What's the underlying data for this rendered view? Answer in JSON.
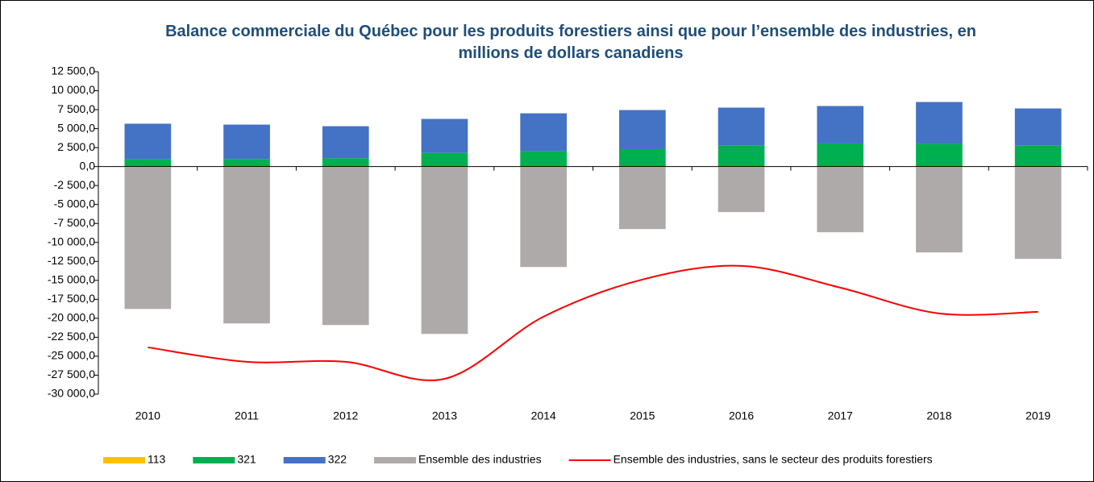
{
  "chart_data": {
    "type": "bar",
    "title": "Balance commerciale du Québec pour les produits forestiers ainsi que pour l’ensemble des industries, en millions de dollars canadiens",
    "categories": [
      "2010",
      "2011",
      "2012",
      "2013",
      "2014",
      "2015",
      "2016",
      "2017",
      "2018",
      "2019"
    ],
    "stacked": true,
    "series": [
      {
        "name": "113",
        "color": "#ffc000",
        "type": "bar",
        "values": [
          -150,
          -150,
          -150,
          -150,
          -150,
          -150,
          -150,
          -150,
          -150,
          -150
        ]
      },
      {
        "name": "321",
        "color": "#00b050",
        "type": "bar",
        "values": [
          950,
          1000,
          1100,
          1800,
          2000,
          2300,
          2750,
          3050,
          3000,
          2750
        ]
      },
      {
        "name": "322",
        "color": "#4472c4",
        "type": "bar",
        "values": [
          4700,
          4530,
          4220,
          4480,
          5020,
          5150,
          5020,
          4930,
          5510,
          4910
        ]
      },
      {
        "name": "Ensemble des industries",
        "color": "#aeaaaa",
        "type": "bar",
        "values": [
          -18620,
          -20530,
          -20740,
          -21910,
          -13090,
          -8090,
          -5850,
          -8510,
          -11170,
          -12020
        ]
      },
      {
        "name": "Ensemble des industries, sans le secteur des produits forestiers",
        "color": "#ff0000",
        "type": "line",
        "values": [
          -23830,
          -25740,
          -25740,
          -27980,
          -19790,
          -14890,
          -13090,
          -15960,
          -19360,
          -19150
        ]
      }
    ],
    "ylim": [
      -30000,
      12500
    ],
    "yticks": [
      {
        "value": 12500,
        "label": "12 500,0"
      },
      {
        "value": 10000,
        "label": "10 000,0"
      },
      {
        "value": 7500,
        "label": "7 500,0"
      },
      {
        "value": 5000,
        "label": "5 000,0"
      },
      {
        "value": 2500,
        "label": "2 500,0"
      },
      {
        "value": 0,
        "label": "0,0"
      },
      {
        "value": -2500,
        "label": "-2 500,0"
      },
      {
        "value": -5000,
        "label": "-5 000,0"
      },
      {
        "value": -7500,
        "label": "-7 500,0"
      },
      {
        "value": -10000,
        "label": "-10 000,0"
      },
      {
        "value": -12500,
        "label": "-12 500,0"
      },
      {
        "value": -15000,
        "label": "-15 000,0"
      },
      {
        "value": -17500,
        "label": "-17 500,0"
      },
      {
        "value": -20000,
        "label": "-20 000,0"
      },
      {
        "value": -22500,
        "label": "-22 500,0"
      },
      {
        "value": -25000,
        "label": "-25 000,0"
      },
      {
        "value": -27500,
        "label": "-27 500,0"
      },
      {
        "value": -30000,
        "label": "-30 000,0"
      }
    ],
    "legend": "bottom"
  }
}
